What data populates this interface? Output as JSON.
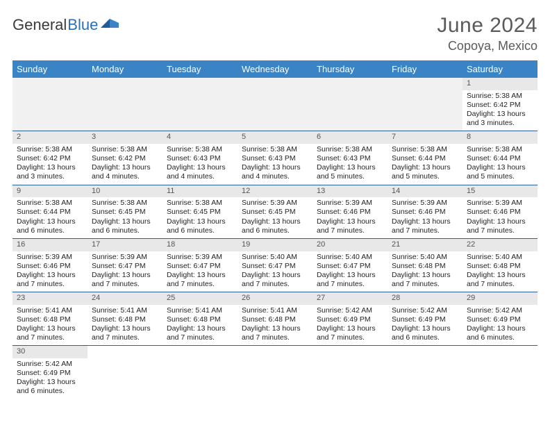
{
  "brand": {
    "word1": "General",
    "word2": "Blue",
    "mark_color": "#2d6fb5"
  },
  "title": "June 2024",
  "location": "Copoya, Mexico",
  "header_bg": "#3a84c6",
  "header_fg": "#ffffff",
  "daynum_bg": "#e8e8e8",
  "row_border": "#2f5f9a",
  "weekdays": [
    "Sunday",
    "Monday",
    "Tuesday",
    "Wednesday",
    "Thursday",
    "Friday",
    "Saturday"
  ],
  "leading_blanks": 6,
  "days": [
    {
      "n": "1",
      "sunrise": "Sunrise: 5:38 AM",
      "sunset": "Sunset: 6:42 PM",
      "daylight": "Daylight: 13 hours and 3 minutes."
    },
    {
      "n": "2",
      "sunrise": "Sunrise: 5:38 AM",
      "sunset": "Sunset: 6:42 PM",
      "daylight": "Daylight: 13 hours and 3 minutes."
    },
    {
      "n": "3",
      "sunrise": "Sunrise: 5:38 AM",
      "sunset": "Sunset: 6:42 PM",
      "daylight": "Daylight: 13 hours and 4 minutes."
    },
    {
      "n": "4",
      "sunrise": "Sunrise: 5:38 AM",
      "sunset": "Sunset: 6:43 PM",
      "daylight": "Daylight: 13 hours and 4 minutes."
    },
    {
      "n": "5",
      "sunrise": "Sunrise: 5:38 AM",
      "sunset": "Sunset: 6:43 PM",
      "daylight": "Daylight: 13 hours and 4 minutes."
    },
    {
      "n": "6",
      "sunrise": "Sunrise: 5:38 AM",
      "sunset": "Sunset: 6:43 PM",
      "daylight": "Daylight: 13 hours and 5 minutes."
    },
    {
      "n": "7",
      "sunrise": "Sunrise: 5:38 AM",
      "sunset": "Sunset: 6:44 PM",
      "daylight": "Daylight: 13 hours and 5 minutes."
    },
    {
      "n": "8",
      "sunrise": "Sunrise: 5:38 AM",
      "sunset": "Sunset: 6:44 PM",
      "daylight": "Daylight: 13 hours and 5 minutes."
    },
    {
      "n": "9",
      "sunrise": "Sunrise: 5:38 AM",
      "sunset": "Sunset: 6:44 PM",
      "daylight": "Daylight: 13 hours and 6 minutes."
    },
    {
      "n": "10",
      "sunrise": "Sunrise: 5:38 AM",
      "sunset": "Sunset: 6:45 PM",
      "daylight": "Daylight: 13 hours and 6 minutes."
    },
    {
      "n": "11",
      "sunrise": "Sunrise: 5:38 AM",
      "sunset": "Sunset: 6:45 PM",
      "daylight": "Daylight: 13 hours and 6 minutes."
    },
    {
      "n": "12",
      "sunrise": "Sunrise: 5:39 AM",
      "sunset": "Sunset: 6:45 PM",
      "daylight": "Daylight: 13 hours and 6 minutes."
    },
    {
      "n": "13",
      "sunrise": "Sunrise: 5:39 AM",
      "sunset": "Sunset: 6:46 PM",
      "daylight": "Daylight: 13 hours and 7 minutes."
    },
    {
      "n": "14",
      "sunrise": "Sunrise: 5:39 AM",
      "sunset": "Sunset: 6:46 PM",
      "daylight": "Daylight: 13 hours and 7 minutes."
    },
    {
      "n": "15",
      "sunrise": "Sunrise: 5:39 AM",
      "sunset": "Sunset: 6:46 PM",
      "daylight": "Daylight: 13 hours and 7 minutes."
    },
    {
      "n": "16",
      "sunrise": "Sunrise: 5:39 AM",
      "sunset": "Sunset: 6:46 PM",
      "daylight": "Daylight: 13 hours and 7 minutes."
    },
    {
      "n": "17",
      "sunrise": "Sunrise: 5:39 AM",
      "sunset": "Sunset: 6:47 PM",
      "daylight": "Daylight: 13 hours and 7 minutes."
    },
    {
      "n": "18",
      "sunrise": "Sunrise: 5:39 AM",
      "sunset": "Sunset: 6:47 PM",
      "daylight": "Daylight: 13 hours and 7 minutes."
    },
    {
      "n": "19",
      "sunrise": "Sunrise: 5:40 AM",
      "sunset": "Sunset: 6:47 PM",
      "daylight": "Daylight: 13 hours and 7 minutes."
    },
    {
      "n": "20",
      "sunrise": "Sunrise: 5:40 AM",
      "sunset": "Sunset: 6:47 PM",
      "daylight": "Daylight: 13 hours and 7 minutes."
    },
    {
      "n": "21",
      "sunrise": "Sunrise: 5:40 AM",
      "sunset": "Sunset: 6:48 PM",
      "daylight": "Daylight: 13 hours and 7 minutes."
    },
    {
      "n": "22",
      "sunrise": "Sunrise: 5:40 AM",
      "sunset": "Sunset: 6:48 PM",
      "daylight": "Daylight: 13 hours and 7 minutes."
    },
    {
      "n": "23",
      "sunrise": "Sunrise: 5:41 AM",
      "sunset": "Sunset: 6:48 PM",
      "daylight": "Daylight: 13 hours and 7 minutes."
    },
    {
      "n": "24",
      "sunrise": "Sunrise: 5:41 AM",
      "sunset": "Sunset: 6:48 PM",
      "daylight": "Daylight: 13 hours and 7 minutes."
    },
    {
      "n": "25",
      "sunrise": "Sunrise: 5:41 AM",
      "sunset": "Sunset: 6:48 PM",
      "daylight": "Daylight: 13 hours and 7 minutes."
    },
    {
      "n": "26",
      "sunrise": "Sunrise: 5:41 AM",
      "sunset": "Sunset: 6:48 PM",
      "daylight": "Daylight: 13 hours and 7 minutes."
    },
    {
      "n": "27",
      "sunrise": "Sunrise: 5:42 AM",
      "sunset": "Sunset: 6:49 PM",
      "daylight": "Daylight: 13 hours and 7 minutes."
    },
    {
      "n": "28",
      "sunrise": "Sunrise: 5:42 AM",
      "sunset": "Sunset: 6:49 PM",
      "daylight": "Daylight: 13 hours and 6 minutes."
    },
    {
      "n": "29",
      "sunrise": "Sunrise: 5:42 AM",
      "sunset": "Sunset: 6:49 PM",
      "daylight": "Daylight: 13 hours and 6 minutes."
    },
    {
      "n": "30",
      "sunrise": "Sunrise: 5:42 AM",
      "sunset": "Sunset: 6:49 PM",
      "daylight": "Daylight: 13 hours and 6 minutes."
    }
  ]
}
